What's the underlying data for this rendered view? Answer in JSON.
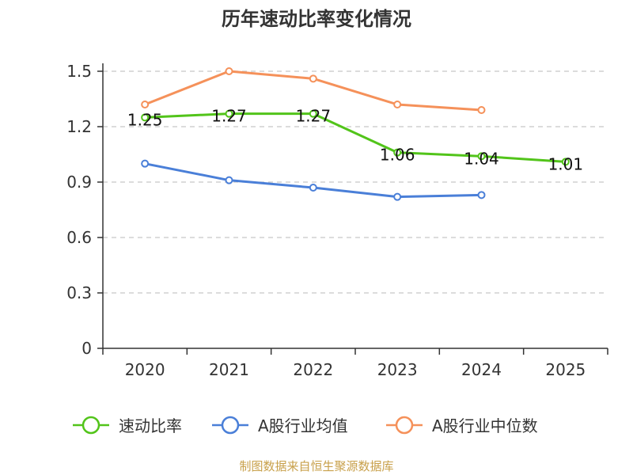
{
  "chart_data": {
    "type": "line",
    "title": "历年速动比率变化情况",
    "categories": [
      "2020",
      "2021",
      "2022",
      "2023",
      "2024",
      "2025"
    ],
    "y_ticks": [
      "0",
      "0.3",
      "0.6",
      "0.9",
      "1.2",
      "1.5"
    ],
    "ylim": [
      0,
      1.5
    ],
    "grid": true,
    "legend_position": "bottom",
    "series": [
      {
        "name": "速动比率",
        "color": "#52c41a",
        "values": [
          1.25,
          1.27,
          1.27,
          1.06,
          1.04,
          1.01
        ],
        "labels": [
          "1.25",
          "1.27",
          "1.27",
          "1.06",
          "1.04",
          "1.01"
        ]
      },
      {
        "name": "A股行业均值",
        "color": "#4a7fd8",
        "values": [
          1.0,
          0.91,
          0.87,
          0.82,
          0.83,
          null
        ]
      },
      {
        "name": "A股行业中位数",
        "color": "#f5915a",
        "values": [
          1.32,
          1.5,
          1.46,
          1.32,
          1.29,
          null
        ]
      }
    ]
  },
  "footer": "制图数据来自恒生聚源数据库"
}
